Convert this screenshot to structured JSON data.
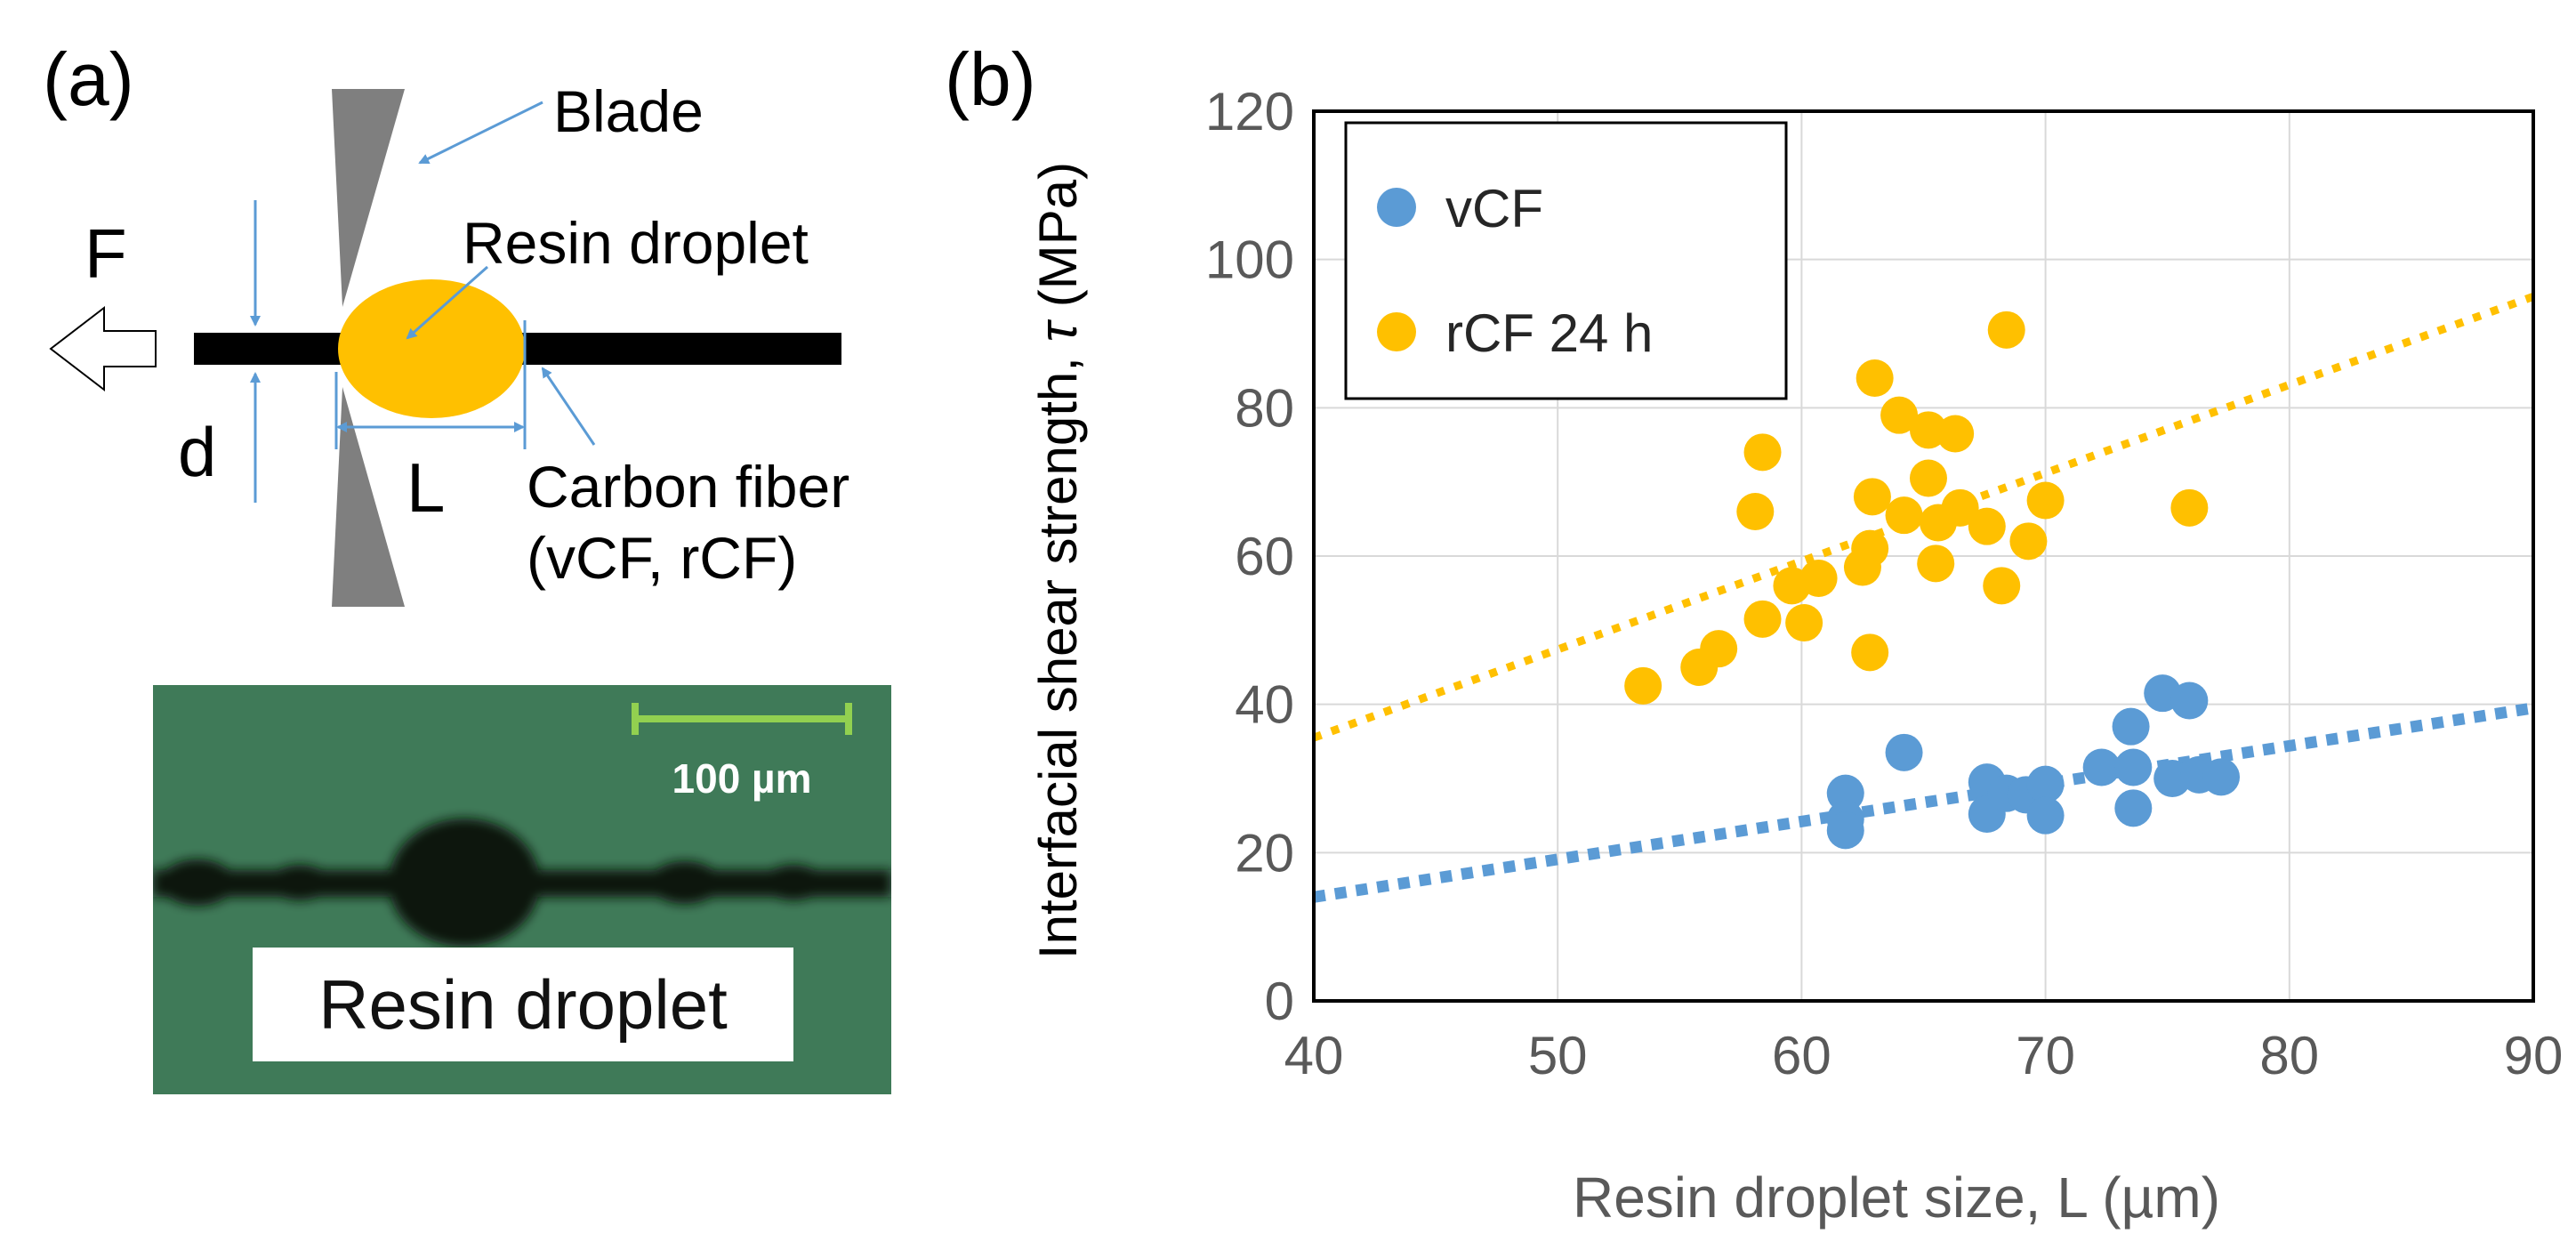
{
  "panel_a": {
    "label": "(a)",
    "force_label": "F",
    "diameter_label": "d",
    "length_label": "L",
    "blade_label": "Blade",
    "droplet_label": "Resin droplet",
    "fiber_label_line1": "Carbon fiber",
    "fiber_label_line2": "(vCF, rCF)",
    "micrograph": {
      "scale_bar_label": "100 µm",
      "caption": "Resin droplet"
    }
  },
  "panel_b": {
    "label": "(b)"
  },
  "colors": {
    "vCF": "#5b9bd5",
    "rCF": "#ffc000",
    "annotation_arrow": "#5b9bd5",
    "blade": "#7f7f7f",
    "scale_bar": "#92d050",
    "micrograph_bg": "#3f7a58"
  },
  "chart_data": {
    "type": "scatter",
    "title": "",
    "xlabel": "Resin droplet size, L (µm)",
    "ylabel_prefix": "Interfacial shear strength, ",
    "ylabel_symbol": "τ",
    "ylabel_suffix": " (MPa)",
    "xlim": [
      40,
      90
    ],
    "ylim": [
      0,
      120
    ],
    "x_ticks": [
      40,
      50,
      60,
      70,
      80,
      90
    ],
    "y_ticks": [
      0,
      20,
      40,
      60,
      80,
      100,
      120
    ],
    "grid": true,
    "legend_position": "top-left",
    "series": [
      {
        "name": "vCF",
        "color": "#5b9bd5",
        "points": [
          [
            61.8,
            28.0
          ],
          [
            61.8,
            24.5
          ],
          [
            61.8,
            23.0
          ],
          [
            64.2,
            33.5
          ],
          [
            67.6,
            29.5
          ],
          [
            67.6,
            25.2
          ],
          [
            68.4,
            28.0
          ],
          [
            69.2,
            27.8
          ],
          [
            70.0,
            29.2
          ],
          [
            70.0,
            25.0
          ],
          [
            72.3,
            31.5
          ],
          [
            73.5,
            37.0
          ],
          [
            73.6,
            31.5
          ],
          [
            73.6,
            26.0
          ],
          [
            74.8,
            41.5
          ],
          [
            75.2,
            30.0
          ],
          [
            75.9,
            40.5
          ],
          [
            76.3,
            30.5
          ],
          [
            77.2,
            30.2
          ]
        ],
        "trendline": {
          "x": [
            40,
            90
          ],
          "y": [
            14.0,
            39.5
          ]
        }
      },
      {
        "name": "rCF 24 h",
        "color": "#ffc000",
        "points": [
          [
            53.5,
            42.5
          ],
          [
            55.8,
            45.0
          ],
          [
            56.6,
            47.5
          ],
          [
            58.1,
            66.0
          ],
          [
            58.4,
            74.0
          ],
          [
            58.4,
            51.5
          ],
          [
            59.6,
            56.0
          ],
          [
            60.1,
            51.0
          ],
          [
            60.7,
            57.0
          ],
          [
            62.5,
            58.5
          ],
          [
            62.8,
            47.0
          ],
          [
            62.8,
            61.0
          ],
          [
            62.9,
            68.0
          ],
          [
            63.0,
            84.0
          ],
          [
            64.0,
            79.0
          ],
          [
            64.2,
            65.5
          ],
          [
            65.2,
            77.0
          ],
          [
            65.2,
            70.5
          ],
          [
            65.5,
            59.0
          ],
          [
            65.6,
            64.5
          ],
          [
            66.3,
            76.5
          ],
          [
            66.5,
            66.5
          ],
          [
            67.6,
            64.0
          ],
          [
            68.2,
            56.0
          ],
          [
            68.4,
            90.5
          ],
          [
            69.3,
            62.0
          ],
          [
            70.0,
            67.5
          ],
          [
            75.9,
            66.5
          ]
        ],
        "trendline": {
          "x": [
            40,
            90
          ],
          "y": [
            35.5,
            95.0
          ]
        }
      }
    ]
  }
}
